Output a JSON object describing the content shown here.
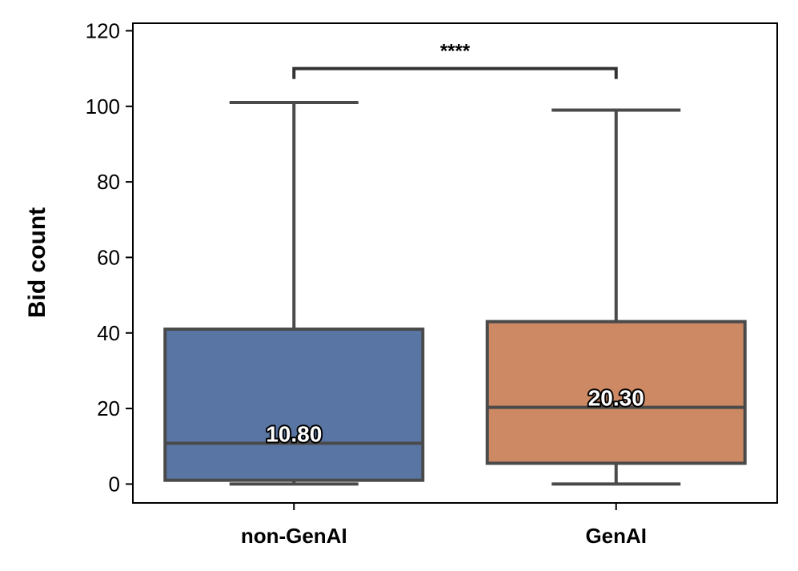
{
  "chart_data": {
    "type": "box",
    "title": "",
    "xlabel": "",
    "ylabel": "Bid count",
    "ylim": [
      -5,
      122
    ],
    "yticks": [
      0,
      20,
      40,
      60,
      80,
      100,
      120
    ],
    "categories": [
      "non-GenAI",
      "GenAI"
    ],
    "boxes": [
      {
        "category": "non-GenAI",
        "whisker_low": 0,
        "q1": 1,
        "median": 10.8,
        "q3": 41,
        "whisker_high": 101,
        "color": "#5975A4",
        "median_label": "10.80"
      },
      {
        "category": "GenAI",
        "whisker_low": 0,
        "q1": 5.5,
        "median": 20.3,
        "q3": 43,
        "whisker_high": 99,
        "color": "#CC8963",
        "median_label": "20.30"
      }
    ],
    "significance": {
      "label": "****",
      "y": 110,
      "between": [
        "non-GenAI",
        "GenAI"
      ]
    },
    "grid": false,
    "line_color": "#4a4a4a"
  }
}
